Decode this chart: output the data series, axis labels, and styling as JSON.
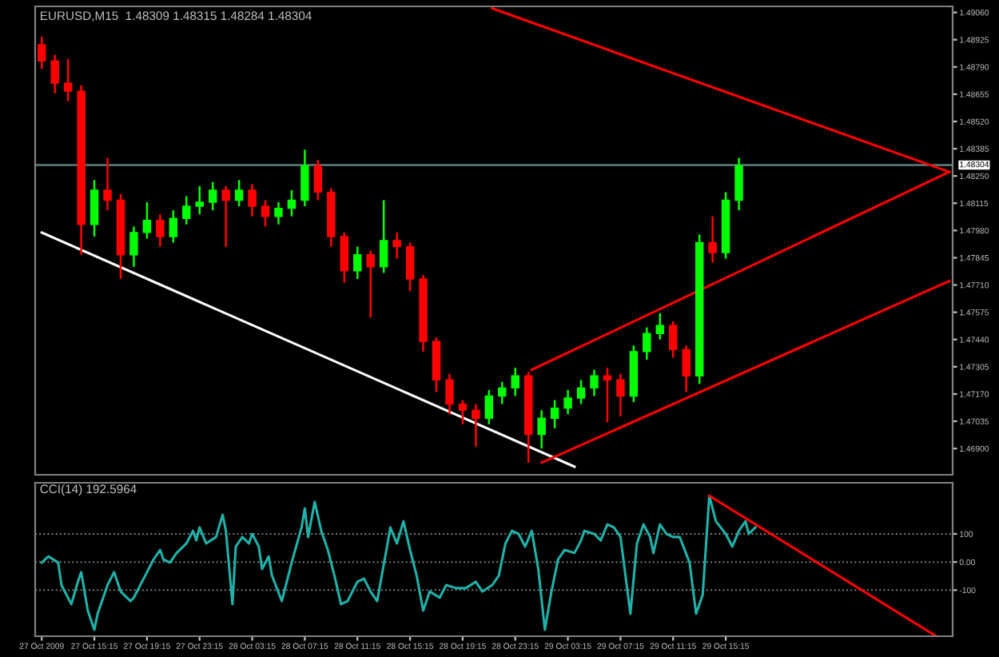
{
  "chart_data": [
    {
      "type": "candlestick",
      "title": "EURUSD,M15  1.48309 1.48315 1.48284 1.48304",
      "x": [
        "2009-10-27T11:15",
        "2009-10-27T12:15",
        "2009-10-27T13:15",
        "2009-10-27T14:15",
        "2009-10-27T15:15",
        "2009-10-27T16:15",
        "2009-10-27T17:15",
        "2009-10-27T18:15",
        "2009-10-27T19:15",
        "2009-10-27T20:15",
        "2009-10-27T21:15",
        "2009-10-27T22:15",
        "2009-10-27T23:15",
        "2009-10-28T00:15",
        "2009-10-28T01:15",
        "2009-10-28T02:15",
        "2009-10-28T03:15",
        "2009-10-28T04:15",
        "2009-10-28T05:15",
        "2009-10-28T06:15",
        "2009-10-28T07:15",
        "2009-10-28T08:15",
        "2009-10-28T09:15",
        "2009-10-28T10:15",
        "2009-10-28T11:15",
        "2009-10-28T12:15",
        "2009-10-28T13:15",
        "2009-10-28T14:15",
        "2009-10-28T15:15",
        "2009-10-28T16:15",
        "2009-10-28T17:15",
        "2009-10-28T18:15",
        "2009-10-28T19:15",
        "2009-10-28T20:15",
        "2009-10-28T21:15",
        "2009-10-28T22:15",
        "2009-10-28T23:15",
        "2009-10-29T00:15",
        "2009-10-29T01:15",
        "2009-10-29T02:15",
        "2009-10-29T03:15",
        "2009-10-29T04:15",
        "2009-10-29T05:15",
        "2009-10-29T06:15",
        "2009-10-29T07:15",
        "2009-10-29T08:15",
        "2009-10-29T09:15",
        "2009-10-29T10:15",
        "2009-10-29T11:15",
        "2009-10-29T12:15",
        "2009-10-29T13:15",
        "2009-10-29T14:15",
        "2009-10-29T15:15",
        "2009-10-29T16:15"
      ],
      "ohlc": [
        [
          1.489,
          1.4894,
          1.4878,
          1.4882
        ],
        [
          1.4882,
          1.4885,
          1.4866,
          1.4871
        ],
        [
          1.4871,
          1.4883,
          1.4862,
          1.4867
        ],
        [
          1.4867,
          1.487,
          1.4786,
          1.4801
        ],
        [
          1.4801,
          1.4823,
          1.4795,
          1.4818
        ],
        [
          1.4818,
          1.4834,
          1.4808,
          1.4813
        ],
        [
          1.4813,
          1.4816,
          1.4774,
          1.4786
        ],
        [
          1.4786,
          1.48,
          1.478,
          1.4797
        ],
        [
          1.4797,
          1.4812,
          1.4794,
          1.4803
        ],
        [
          1.4803,
          1.4806,
          1.479,
          1.4795
        ],
        [
          1.4795,
          1.4808,
          1.4792,
          1.4804
        ],
        [
          1.4804,
          1.4815,
          1.4801,
          1.481
        ],
        [
          1.481,
          1.482,
          1.4806,
          1.4812
        ],
        [
          1.4812,
          1.4822,
          1.4808,
          1.4818
        ],
        [
          1.4818,
          1.482,
          1.479,
          1.4813
        ],
        [
          1.4813,
          1.4823,
          1.481,
          1.4818
        ],
        [
          1.4818,
          1.4821,
          1.4805,
          1.481
        ],
        [
          1.481,
          1.4813,
          1.48,
          1.4805
        ],
        [
          1.4805,
          1.4812,
          1.4801,
          1.4809
        ],
        [
          1.4809,
          1.4818,
          1.4805,
          1.4813
        ],
        [
          1.4813,
          1.4838,
          1.481,
          1.483
        ],
        [
          1.483,
          1.4833,
          1.4813,
          1.4817
        ],
        [
          1.4817,
          1.4819,
          1.479,
          1.4795
        ],
        [
          1.4795,
          1.4797,
          1.4772,
          1.4778
        ],
        [
          1.4778,
          1.479,
          1.4774,
          1.4786
        ],
        [
          1.4786,
          1.4788,
          1.4755,
          1.478
        ],
        [
          1.478,
          1.4813,
          1.4777,
          1.4793
        ],
        [
          1.4793,
          1.4797,
          1.4784,
          1.479
        ],
        [
          1.479,
          1.4792,
          1.4768,
          1.4774
        ],
        [
          1.4774,
          1.4776,
          1.4738,
          1.4743
        ],
        [
          1.4743,
          1.4745,
          1.4718,
          1.4724
        ],
        [
          1.4724,
          1.4727,
          1.4707,
          1.4712
        ],
        [
          1.4712,
          1.4714,
          1.4702,
          1.4709
        ],
        [
          1.4709,
          1.4712,
          1.4691,
          1.4705
        ],
        [
          1.4705,
          1.4719,
          1.4702,
          1.4716
        ],
        [
          1.4716,
          1.4723,
          1.4712,
          1.472
        ],
        [
          1.472,
          1.473,
          1.4716,
          1.4726
        ],
        [
          1.4726,
          1.4728,
          1.4683,
          1.4697
        ],
        [
          1.4697,
          1.4709,
          1.469,
          1.4705
        ],
        [
          1.4705,
          1.4714,
          1.47,
          1.471
        ],
        [
          1.471,
          1.4719,
          1.4707,
          1.4715
        ],
        [
          1.4715,
          1.4724,
          1.4712,
          1.472
        ],
        [
          1.472,
          1.4729,
          1.4716,
          1.4726
        ],
        [
          1.4726,
          1.473,
          1.4703,
          1.4724
        ],
        [
          1.4724,
          1.4727,
          1.4706,
          1.4716
        ],
        [
          1.4716,
          1.4741,
          1.4713,
          1.4738
        ],
        [
          1.4738,
          1.475,
          1.4734,
          1.4747
        ],
        [
          1.4747,
          1.4757,
          1.4744,
          1.4751
        ],
        [
          1.4751,
          1.4753,
          1.4735,
          1.4739
        ],
        [
          1.4739,
          1.4741,
          1.4718,
          1.4726
        ],
        [
          1.4726,
          1.4796,
          1.4722,
          1.4792
        ],
        [
          1.4792,
          1.4805,
          1.4782,
          1.4787
        ],
        [
          1.4787,
          1.4817,
          1.4784,
          1.4813
        ],
        [
          1.4813,
          1.4834,
          1.4808,
          1.483
        ]
      ],
      "colors": [
        "#ff0000",
        "#ff0000",
        "#ff0000",
        "#ff0000",
        "#00ff00",
        "#ff0000",
        "#ff0000",
        "#00ff00",
        "#00ff00",
        "#ff0000",
        "#00ff00",
        "#00ff00",
        "#00ff00",
        "#00ff00",
        "#ff0000",
        "#00ff00",
        "#ff0000",
        "#ff0000",
        "#00ff00",
        "#00ff00",
        "#00ff00",
        "#ff0000",
        "#ff0000",
        "#ff0000",
        "#00ff00",
        "#ff0000",
        "#00ff00",
        "#ff0000",
        "#ff0000",
        "#ff0000",
        "#ff0000",
        "#ff0000",
        "#ff0000",
        "#ff0000",
        "#00ff00",
        "#00ff00",
        "#00ff00",
        "#ff0000",
        "#00ff00",
        "#00ff00",
        "#00ff00",
        "#00ff00",
        "#00ff00",
        "#ff0000",
        "#ff0000",
        "#00ff00",
        "#00ff00",
        "#00ff00",
        "#ff0000",
        "#ff0000",
        "#00ff00",
        "#ff0000",
        "#00ff00",
        "#00ff00"
      ],
      "series": [
        {
          "type": "line",
          "color": "#ffffff",
          "x": [
            "2009-10-27T11:15",
            "2009-10-29T03:45"
          ],
          "values": [
            1.4797,
            1.4681
          ]
        },
        {
          "type": "line",
          "color": "#ff0000",
          "x": [
            "2009-10-28T21:30",
            "2009-10-30T08:15"
          ],
          "values": [
            1.4908,
            1.4827
          ]
        },
        {
          "type": "line",
          "color": "#ff0000",
          "x": [
            "2009-10-29T00:30",
            "2009-10-30T08:15"
          ],
          "values": [
            1.4729,
            1.4827
          ]
        },
        {
          "type": "line",
          "color": "#ff0000",
          "x": [
            "2009-10-29T01:15",
            "2009-10-30T08:15"
          ],
          "values": [
            1.4683,
            1.4773
          ]
        }
      ],
      "ref_lines": [
        {
          "axis": "y",
          "value": 1.48304,
          "label": "1.48304",
          "color": "#5f7f7f"
        }
      ],
      "xlim": [
        "2009-10-27T10:45",
        "2009-10-30T08:30"
      ],
      "ylim": [
        1.4677,
        1.4909
      ],
      "yticks": [
        {
          "value": 1.4906,
          "label": "1.49060"
        },
        {
          "value": 1.48925,
          "label": "1.48925"
        },
        {
          "value": 1.4879,
          "label": "1.48790"
        },
        {
          "value": 1.48655,
          "label": "1.48655"
        },
        {
          "value": 1.4852,
          "label": "1.48520"
        },
        {
          "value": 1.48385,
          "label": "1.48385"
        },
        {
          "value": 1.4825,
          "label": "1.48250"
        },
        {
          "value": 1.48115,
          "label": "1.48115"
        },
        {
          "value": 1.4798,
          "label": "1.47980"
        },
        {
          "value": 1.47845,
          "label": "1.47845"
        },
        {
          "value": 1.4771,
          "label": "1.47710"
        },
        {
          "value": 1.47575,
          "label": "1.47575"
        },
        {
          "value": 1.4744,
          "label": "1.47440"
        },
        {
          "value": 1.47305,
          "label": "1.47305"
        },
        {
          "value": 1.4717,
          "label": "1.47170"
        },
        {
          "value": 1.47035,
          "label": "1.47035"
        },
        {
          "value": 1.469,
          "label": "1.46900"
        }
      ],
      "tick_labels": "y",
      "grid": false
    },
    {
      "type": "line",
      "title": "CCI(14) 192.5964",
      "series": [
        {
          "color": "#20b2aa",
          "x": [
            "2009-10-27T11:15",
            "2009-10-27T11:45",
            "2009-10-27T12:30",
            "2009-10-27T12:45",
            "2009-10-27T13:30",
            "2009-10-27T14:00",
            "2009-10-27T14:15",
            "2009-10-27T14:45",
            "2009-10-27T15:15",
            "2009-10-27T15:30",
            "2009-10-27T16:15",
            "2009-10-27T16:45",
            "2009-10-27T17:15",
            "2009-10-27T18:00",
            "2009-10-27T18:15",
            "2009-10-27T19:00",
            "2009-10-27T19:45",
            "2009-10-27T20:15",
            "2009-10-27T20:30",
            "2009-10-27T21:00",
            "2009-10-27T21:30",
            "2009-10-27T22:15",
            "2009-10-27T22:45",
            "2009-10-27T23:00",
            "2009-10-27T23:15",
            "2009-10-27T23:45",
            "2009-10-28T00:30",
            "2009-10-28T01:00",
            "2009-10-28T01:15",
            "2009-10-28T01:45",
            "2009-10-28T02:00",
            "2009-10-28T02:30",
            "2009-10-28T03:00",
            "2009-10-28T03:15",
            "2009-10-28T03:45",
            "2009-10-28T04:00",
            "2009-10-28T04:30",
            "2009-10-28T04:45",
            "2009-10-28T05:30",
            "2009-10-28T06:00",
            "2009-10-28T06:15",
            "2009-10-28T07:00",
            "2009-10-28T07:15",
            "2009-10-28T07:30",
            "2009-10-28T08:00",
            "2009-10-28T08:30",
            "2009-10-28T09:00",
            "2009-10-28T09:30",
            "2009-10-28T10:00",
            "2009-10-28T10:30",
            "2009-10-28T11:15",
            "2009-10-28T11:45",
            "2009-10-28T12:15",
            "2009-10-28T12:45",
            "2009-10-28T13:30",
            "2009-10-28T13:45",
            "2009-10-28T14:15",
            "2009-10-28T14:45",
            "2009-10-28T15:15",
            "2009-10-28T15:45",
            "2009-10-28T16:15",
            "2009-10-28T16:45",
            "2009-10-28T17:30",
            "2009-10-28T18:00",
            "2009-10-28T18:45",
            "2009-10-28T19:30",
            "2009-10-28T20:15",
            "2009-10-28T20:45",
            "2009-10-28T21:30",
            "2009-10-28T22:00",
            "2009-10-28T22:30",
            "2009-10-28T23:00",
            "2009-10-28T23:30",
            "2009-10-29T00:00",
            "2009-10-29T00:30",
            "2009-10-29T01:00",
            "2009-10-29T01:30",
            "2009-10-29T02:00",
            "2009-10-29T02:30",
            "2009-10-29T03:00",
            "2009-10-29T03:45",
            "2009-10-29T04:15",
            "2009-10-29T04:30",
            "2009-10-29T05:15",
            "2009-10-29T05:45",
            "2009-10-29T06:15",
            "2009-10-29T06:45",
            "2009-10-29T07:15",
            "2009-10-29T08:00",
            "2009-10-29T08:30",
            "2009-10-29T09:00",
            "2009-10-29T09:30",
            "2009-10-29T09:45",
            "2009-10-29T10:15",
            "2009-10-29T10:45",
            "2009-10-29T11:15",
            "2009-10-29T11:45",
            "2009-10-29T12:30",
            "2009-10-29T13:00",
            "2009-10-29T13:30",
            "2009-10-29T14:00",
            "2009-10-29T14:30",
            "2009-10-29T15:15",
            "2009-10-29T15:45",
            "2009-10-29T16:15",
            "2009-10-29T16:45",
            "2009-10-29T17:00",
            "2009-10-29T17:30"
          ],
          "values": [
            -2,
            20,
            -2,
            -82,
            -150,
            -70,
            -36,
            -173,
            -241,
            -184,
            -82,
            -36,
            -105,
            -139,
            -127,
            -59,
            9,
            43,
            9,
            -2,
            32,
            66,
            111,
            77,
            123,
            66,
            89,
            168,
            111,
            -150,
            55,
            89,
            66,
            100,
            55,
            -25,
            20,
            -48,
            -139,
            -48,
            -2,
            123,
            191,
            89,
            214,
            111,
            43,
            -48,
            -150,
            -139,
            -70,
            -59,
            -105,
            -139,
            55,
            123,
            66,
            145,
            43,
            -48,
            -173,
            -105,
            -127,
            -82,
            -93,
            -93,
            -70,
            -105,
            -82,
            -48,
            66,
            111,
            100,
            55,
            111,
            -25,
            -241,
            -105,
            9,
            43,
            32,
            77,
            111,
            100,
            77,
            134,
            123,
            89,
            -184,
            66,
            134,
            89,
            32,
            134,
            100,
            89,
            89,
            -2,
            -184,
            -116,
            236,
            145,
            100,
            55,
            111,
            145,
            100,
            123
          ]
        },
        {
          "type": "line",
          "color": "#ff0000",
          "x": [
            "2009-10-29T14:00",
            "2009-10-30T07:15"
          ],
          "values": [
            236,
            -264
          ]
        }
      ],
      "xlim": [
        "2009-10-27T10:45",
        "2009-10-30T08:30"
      ],
      "ylim": [
        -264,
        282
      ],
      "yticks": [
        100,
        {
          "value": 0,
          "label": "0.00"
        },
        {
          "value": -100,
          "label": "-100"
        }
      ],
      "xticks": [
        {
          "value": "2009-10-27T11:15",
          "label": "27 Oct 2009"
        },
        {
          "value": "2009-10-27T15:15",
          "label": "27 Oct 15:15"
        },
        {
          "value": "2009-10-27T19:15",
          "label": "27 Oct 19:15"
        },
        {
          "value": "2009-10-27T23:15",
          "label": "27 Oct 23:15"
        },
        {
          "value": "2009-10-28T03:15",
          "label": "28 Oct 03:15"
        },
        {
          "value": "2009-10-28T07:15",
          "label": "28 Oct 07:15"
        },
        {
          "value": "2009-10-28T11:15",
          "label": "28 Oct 11:15"
        },
        {
          "value": "2009-10-28T15:15",
          "label": "28 Oct 15:15"
        },
        {
          "value": "2009-10-28T19:15",
          "label": "28 Oct 19:15"
        },
        {
          "value": "2009-10-28T23:15",
          "label": "28 Oct 23:15"
        },
        {
          "value": "2009-10-29T03:15",
          "label": "29 Oct 03:15"
        },
        {
          "value": "2009-10-29T07:15",
          "label": "29 Oct 07:15"
        },
        {
          "value": "2009-10-29T11:15",
          "label": "29 Oct 11:15"
        },
        {
          "value": "2009-10-29T15:15",
          "label": "29 Oct 15:15"
        }
      ],
      "grid": "y",
      "line_style": "solid"
    }
  ]
}
